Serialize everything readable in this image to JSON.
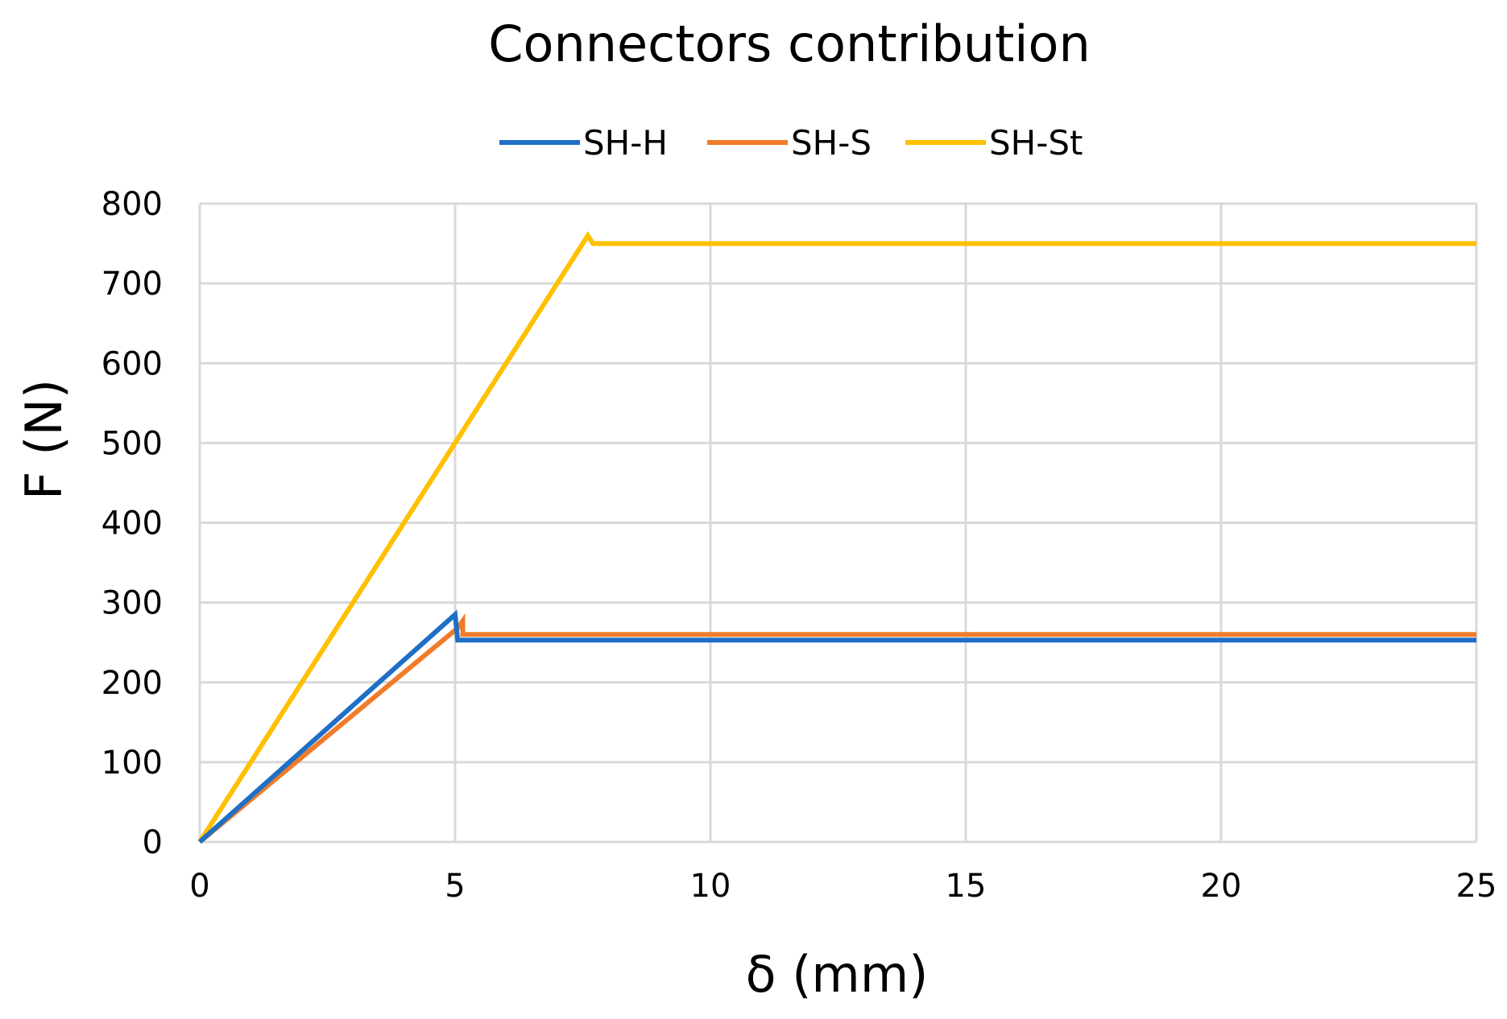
{
  "chart_data": {
    "type": "line",
    "title": "Connectors contribution",
    "xlabel": "δ (mm)",
    "ylabel": "F (N)",
    "xlim": [
      0,
      25
    ],
    "ylim": [
      0,
      800
    ],
    "xticks": [
      0,
      5,
      10,
      15,
      20,
      25
    ],
    "yticks": [
      0,
      100,
      200,
      300,
      400,
      500,
      600,
      700,
      800
    ],
    "grid": true,
    "legend_position": "top",
    "series": [
      {
        "name": "SH-H",
        "color": "#1f6fc6",
        "points": [
          [
            0,
            0
          ],
          [
            5.0,
            285
          ],
          [
            5.05,
            253
          ],
          [
            25,
            253
          ]
        ]
      },
      {
        "name": "SH-S",
        "color": "#f07c2a",
        "points": [
          [
            0,
            0
          ],
          [
            5.05,
            268
          ],
          [
            5.15,
            277
          ],
          [
            5.15,
            260
          ],
          [
            25,
            260
          ]
        ]
      },
      {
        "name": "SH-St",
        "color": "#ffc000",
        "points": [
          [
            0,
            0
          ],
          [
            7.6,
            760
          ],
          [
            7.7,
            750
          ],
          [
            25,
            750
          ]
        ]
      }
    ]
  }
}
